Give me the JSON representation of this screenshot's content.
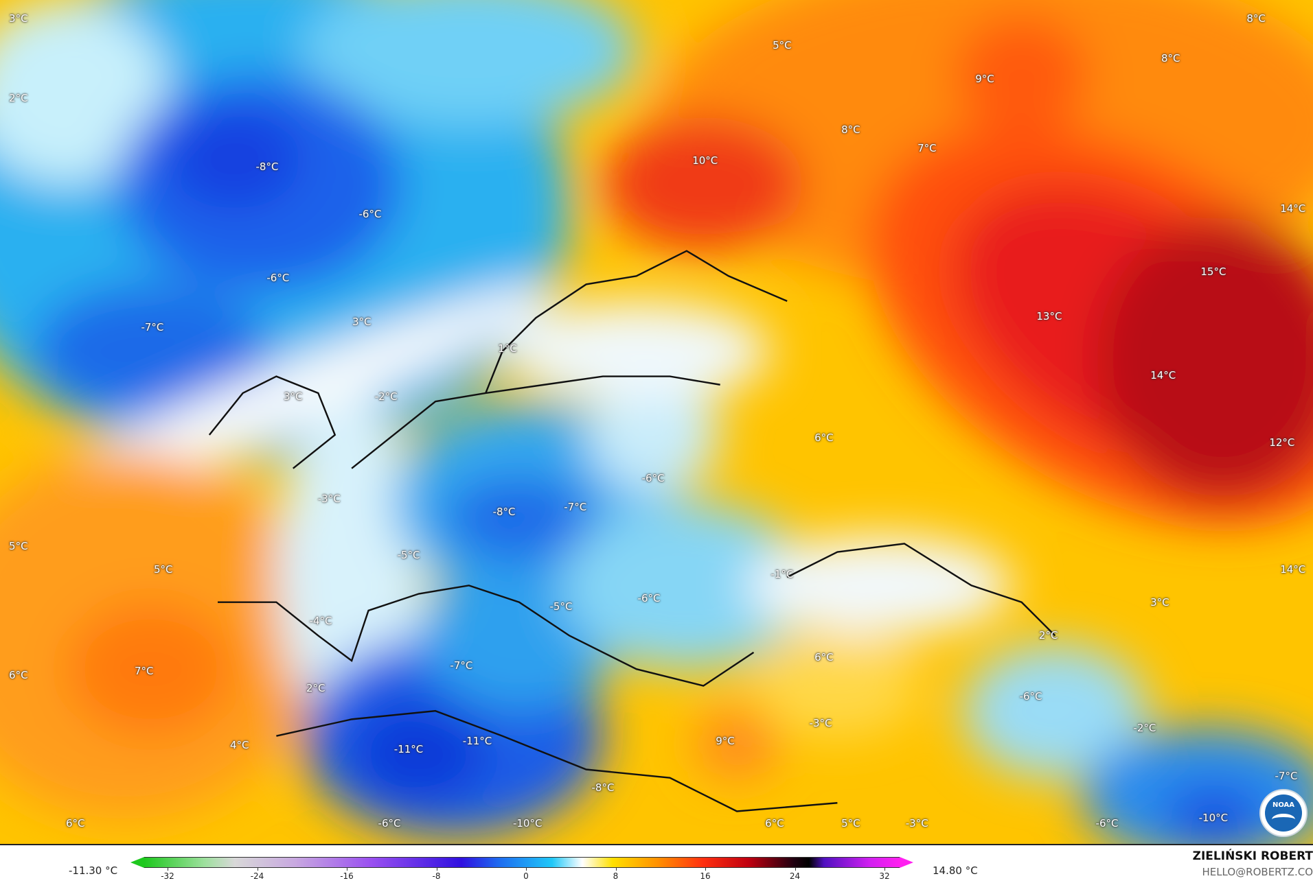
{
  "map": {
    "temperature_labels": [
      "3°C",
      "2°C",
      "-8°C",
      "-6°C",
      "-6°C",
      "-7°C",
      "3°C",
      "1°C",
      "3°C",
      "-2°C",
      "5°C",
      "8°C",
      "8°C",
      "9°C",
      "8°C",
      "7°C",
      "10°C",
      "14°C",
      "15°C",
      "13°C",
      "14°C",
      "12°C",
      "6°C",
      "-6°C",
      "-7°C",
      "-8°C",
      "-3°C",
      "5°C",
      "5°C",
      "-5°C",
      "-1°C",
      "14°C",
      "3°C",
      "-4°C",
      "-5°C",
      "-6°C",
      "2°C",
      "6°C",
      "6°C",
      "7°C",
      "-7°C",
      "2°C",
      "-6°C",
      "-2°C",
      "-3°C",
      "9°C",
      "-11°C",
      "-11°C",
      "4°C",
      "-8°C",
      "-7°C",
      "-10°C",
      "6°C",
      "-6°C",
      "-10°C",
      "6°C",
      "5°C",
      "-3°C",
      "-6°C"
    ],
    "logo_text": "NOAA"
  },
  "legend": {
    "min_value": "-11.30 °C",
    "max_value": "14.80 °C",
    "ticks": [
      "-32",
      "-24",
      "-16",
      "-8",
      "0",
      "8",
      "16",
      "24",
      "32"
    ]
  },
  "credits": {
    "author": "ZIELIŃSKI ROBERT",
    "email": "HELLO@ROBERTZ.CO"
  },
  "colors": {
    "cold": "#1440e0",
    "neutral": "#ffffff",
    "warm": "#ff9000",
    "hot": "#b80d14"
  }
}
